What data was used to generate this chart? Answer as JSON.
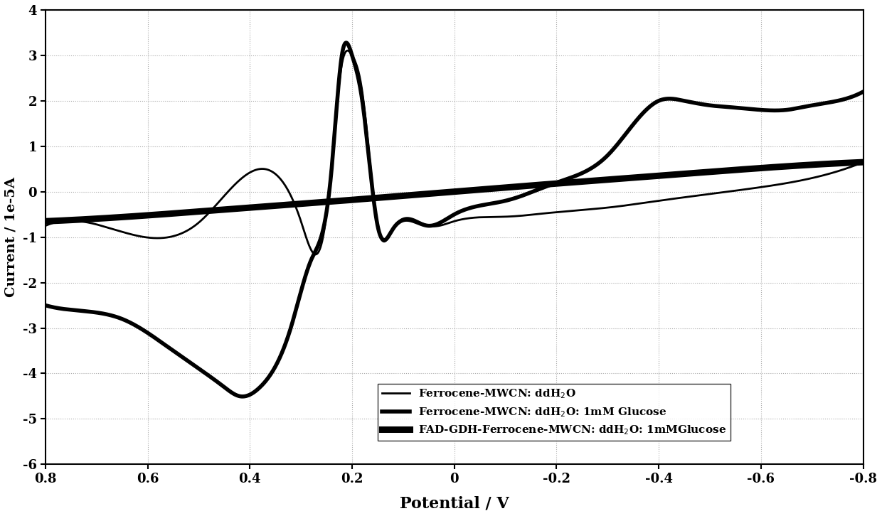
{
  "title": "",
  "xlabel": "Potential / V",
  "ylabel": "Current / 1e-5A",
  "xlim": [
    0.8,
    -0.8
  ],
  "ylim": [
    -6.0,
    4.0
  ],
  "xticks": [
    0.8,
    0.6,
    0.4,
    0.2,
    0,
    -0.2,
    -0.4,
    -0.6,
    -0.8
  ],
  "yticks": [
    -6.0,
    -5.0,
    -4.0,
    -3.0,
    -2.0,
    -1.0,
    0,
    1.0,
    2.0,
    3.0,
    4.0
  ],
  "legend": [
    {
      "label": "Ferrocene-MWCN: ddH₂O",
      "lw": 2.0
    },
    {
      "label": "Ferrocene-MWCN: ddH₂O: 1mM Glucose",
      "lw": 4.0
    },
    {
      "label": "FAD-GDH-Ferrocene-MWCN: ddH₂O: 1mMGlucose",
      "lw": 6.5
    }
  ],
  "background_color": "#ffffff",
  "grid_color": "#aaaaaa",
  "line_color": "#000000"
}
